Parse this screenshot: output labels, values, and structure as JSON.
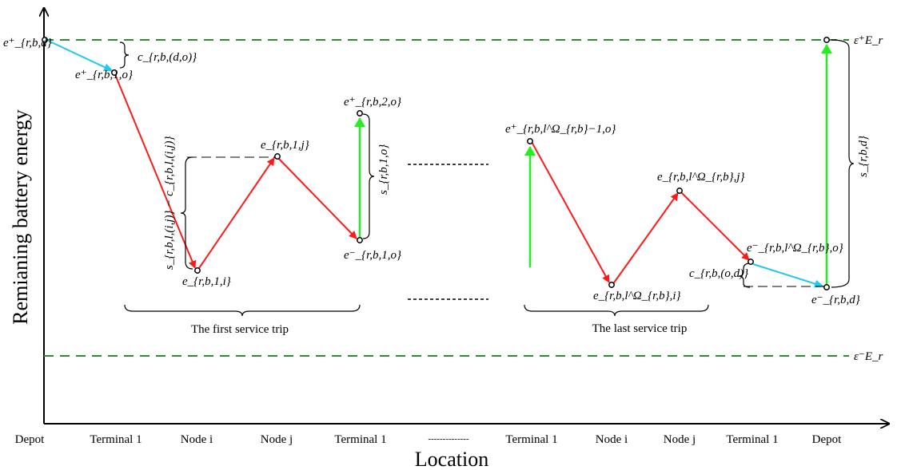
{
  "axes": {
    "y_label": "Remianing battery energy",
    "x_label": "Location"
  },
  "x_ticks": [
    "Depot",
    "Terminal 1",
    "Node i",
    "Node j",
    "Terminal 1",
    "--------------",
    "Terminal 1",
    "Node i",
    "Node j",
    "Terminal 1",
    "Depot"
  ],
  "groups": {
    "first": "The first service trip",
    "last": "The last service trip"
  },
  "bounds": {
    "upper": "ε⁺E_r",
    "lower": "ε⁻E_r"
  },
  "point_labels": {
    "depot_start": "e⁺_{r,b,d}",
    "t1_o": "e⁺_{r,b,1,o}",
    "node_i": "e_{r,b,1,i}",
    "node_j": "e_{r,b,1,j}",
    "t1_minus": "e⁻_{r,b,1,o}",
    "t2_plus": "e⁺_{r,b,2,o}",
    "last_plus": "e⁺_{r,b,l^Ω_{r,b}−1,o}",
    "last_i": "e_{r,b,l^Ω_{r,b},i}",
    "last_j": "e_{r,b,l^Ω_{r,b},j}",
    "last_minus": "e⁻_{r,b,l^Ω_{r,b},o}",
    "depot_end": "e⁻_{r,b,d}"
  },
  "brace_labels": {
    "c_do": "c_{r,b,(d,o)}",
    "s_minus_c": "s_{r,b,l,(i,j)} − c_{r,b,l,(i,j)}",
    "s_1o": "s_{r,b,1,o}",
    "c_od": "c_{r,b,(o,d)}",
    "s_d": "s_{r,b,d}"
  },
  "colors": {
    "axis": "#000000",
    "bound": "#2e8b2e",
    "discharge": "#ff1a1a",
    "deadhead": "#22c8f0",
    "charge": "#22ee22"
  }
}
